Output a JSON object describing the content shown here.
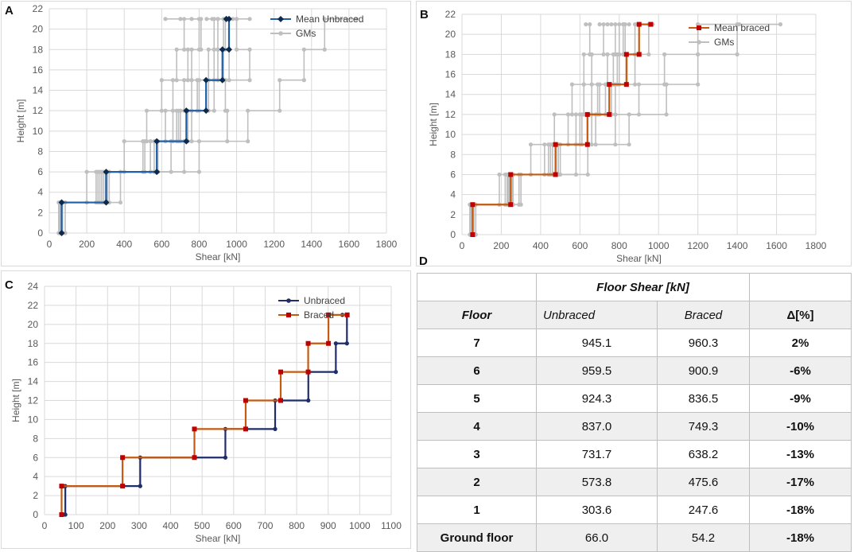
{
  "chart_data": [
    {
      "id": "A",
      "type": "line",
      "panel_label": "A",
      "xlabel": "Shear [kN]",
      "ylabel": "Height [m]",
      "xlim": [
        0,
        1800
      ],
      "ylim": [
        0,
        22
      ],
      "xticks": [
        0,
        200,
        400,
        600,
        800,
        1000,
        1200,
        1400,
        1600,
        1800
      ],
      "yticks": [
        0,
        2,
        4,
        6,
        8,
        10,
        12,
        14,
        16,
        18,
        20,
        22
      ],
      "grid": "both",
      "legend": "top-right",
      "series": [
        {
          "name": "Mean Unbraced",
          "color": "#1f5fa6",
          "marker": "diamond",
          "marker_color": "#0d2a4d",
          "values": [
            945.1,
            959.5,
            924.3,
            837.0,
            731.7,
            573.8,
            303.6,
            66.0
          ]
        },
        {
          "name": "GMs",
          "color": "#bfbfbf",
          "marker": "circle",
          "marker_color": "#bfbfbf",
          "values": [
            [
              1640,
              1470,
              1360,
              1230,
              1060,
              800,
              380,
              85
            ],
            [
              620,
              720,
              680,
              600,
              520,
              400,
              200,
              50
            ],
            [
              1070,
              1000,
              1070,
              940,
              950,
              720,
              260,
              70
            ],
            [
              760,
              810,
              760,
              720,
              660,
              510,
              270,
              60
            ],
            [
              900,
              940,
              900,
              800,
              700,
              560,
              290,
              60
            ],
            [
              980,
              930,
              960,
              880,
              760,
              650,
              320,
              70
            ],
            [
              1000,
              960,
              930,
              850,
              740,
              580,
              310,
              65
            ],
            [
              870,
              880,
              850,
              790,
              690,
              540,
              300,
              55
            ],
            [
              700,
              800,
              740,
              660,
              620,
              500,
              250,
              55
            ],
            [
              840,
              900,
              880,
              760,
              680,
              540,
              280,
              60
            ]
          ]
        }
      ],
      "floor_heights": [
        0,
        3,
        6,
        9,
        12,
        15,
        18,
        21
      ]
    },
    {
      "id": "B",
      "type": "line",
      "panel_label": "B",
      "xlabel": "Shear [kN]",
      "ylabel": "Height [m]",
      "xlim": [
        0,
        1800
      ],
      "ylim": [
        0,
        22
      ],
      "xticks": [
        0,
        200,
        400,
        600,
        800,
        1000,
        1200,
        1400,
        1600,
        1800
      ],
      "yticks": [
        0,
        2,
        4,
        6,
        8,
        10,
        12,
        14,
        16,
        18,
        20,
        22
      ],
      "grid": "both",
      "legend": "top-right",
      "series": [
        {
          "name": "Mean braced",
          "color": "#c55a11",
          "marker": "square",
          "marker_color": "#c00000",
          "values": [
            960.3,
            900.9,
            836.5,
            749.3,
            638.2,
            475.6,
            247.6,
            54.2
          ]
        },
        {
          "name": "GMs",
          "color": "#bfbfbf",
          "marker": "circle",
          "marker_color": "#bfbfbf",
          "values": [
            [
              1620,
              1400,
              1200,
              1040,
              850,
              640,
              300,
              70
            ],
            [
              630,
              650,
              620,
              560,
              470,
              350,
              190,
              40
            ],
            [
              1410,
              1200,
              1030,
              900,
              780,
              580,
              290,
              60
            ],
            [
              740,
              720,
              660,
              620,
              540,
              420,
              220,
              45
            ],
            [
              850,
              820,
              800,
              700,
              600,
              460,
              240,
              50
            ],
            [
              970,
              950,
              880,
              780,
              680,
              500,
              260,
              55
            ],
            [
              700,
              780,
              740,
              660,
              580,
              440,
              230,
              45
            ],
            [
              820,
              830,
              790,
              730,
              640,
              480,
              250,
              55
            ],
            [
              760,
              800,
              770,
              690,
              610,
              450,
              235,
              50
            ],
            [
              900,
              880,
              840,
              760,
              660,
              490,
              255,
              60
            ]
          ]
        }
      ],
      "floor_heights": [
        0,
        3,
        6,
        9,
        12,
        15,
        18,
        21
      ]
    },
    {
      "id": "C",
      "type": "line",
      "panel_label": "C",
      "xlabel": "Shear [kN]",
      "ylabel": "Height [m]",
      "xlim": [
        0,
        1100
      ],
      "ylim": [
        0,
        24
      ],
      "xticks": [
        0,
        100,
        200,
        300,
        400,
        500,
        600,
        700,
        800,
        900,
        1000,
        1100
      ],
      "yticks": [
        0,
        2,
        4,
        6,
        8,
        10,
        12,
        14,
        16,
        18,
        20,
        22,
        24
      ],
      "grid": "both",
      "legend": "top-right",
      "series": [
        {
          "name": "Unbraced",
          "color": "#1f2d6b",
          "marker": "circle",
          "marker_color": "#1f2d6b",
          "values": [
            945.1,
            959.5,
            924.3,
            837.0,
            731.7,
            573.8,
            303.6,
            66.0
          ]
        },
        {
          "name": "Braced",
          "color": "#c55a11",
          "marker": "square",
          "marker_color": "#c00000",
          "values": [
            960.3,
            900.9,
            836.5,
            749.3,
            638.2,
            475.6,
            247.6,
            54.2
          ]
        }
      ],
      "floor_heights": [
        0,
        3,
        6,
        9,
        12,
        15,
        18,
        21
      ]
    },
    {
      "id": "D",
      "type": "table",
      "panel_label": "D",
      "super_header": "Floor Shear [kN]",
      "columns": [
        "Floor",
        "Unbraced",
        "Braced",
        "Δ[%]"
      ],
      "rows": [
        [
          "7",
          "945.1",
          "960.3",
          "2%"
        ],
        [
          "6",
          "959.5",
          "900.9",
          "-6%"
        ],
        [
          "5",
          "924.3",
          "836.5",
          "-9%"
        ],
        [
          "4",
          "837.0",
          "749.3",
          "-10%"
        ],
        [
          "3",
          "731.7",
          "638.2",
          "-13%"
        ],
        [
          "2",
          "573.8",
          "475.6",
          "-17%"
        ],
        [
          "1",
          "303.6",
          "247.6",
          "-18%"
        ],
        [
          "Ground floor",
          "66.0",
          "54.2",
          "-18%"
        ]
      ]
    }
  ]
}
